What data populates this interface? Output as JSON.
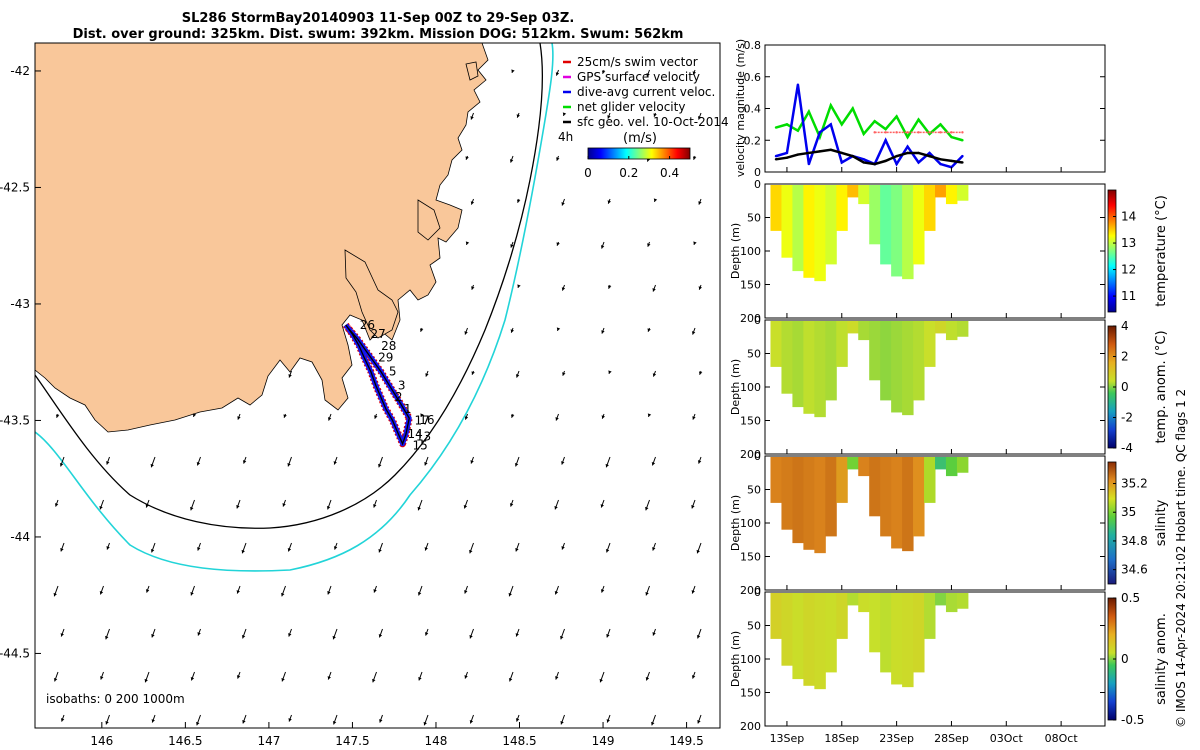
{
  "title": {
    "line1": "SL286 StormBay20140903 11-Sep 00Z to 29-Sep 03Z.",
    "line2": "Dist. over ground: 325km. Dist. swum: 392km. Mission DOG: 512km. Swum: 562km"
  },
  "chart_data": [
    {
      "id": "map",
      "type": "scatter",
      "title": "SL286 StormBay20140903 11-Sep 00Z to 29-Sep 03Z.",
      "x_ticks": [
        "146",
        "146.5",
        "147",
        "147.5",
        "148",
        "148.5",
        "149",
        "149.5"
      ],
      "y_ticks": [
        "-42",
        "-42.5",
        "-43",
        "-43.5",
        "-44",
        "-44.5"
      ],
      "xlim": [
        145.6,
        149.7
      ],
      "ylim": [
        -44.82,
        -41.88
      ],
      "legend": [
        {
          "label": "25cm/s swim vector",
          "color": "#e00000"
        },
        {
          "label": "GPS surface velocity",
          "color": "#e000e0"
        },
        {
          "label": "dive-avg current veloc.",
          "color": "#0000ee"
        },
        {
          "label": "net glider velocity",
          "color": "#00dd00"
        },
        {
          "label": "sfc geo. vel. 10-Oct-2014",
          "color": "#000000"
        }
      ],
      "time_label": "4h",
      "colorbar": {
        "label": "(m/s)",
        "ticks": [
          "0",
          "0.2",
          "0.4"
        ],
        "range": [
          0,
          0.5
        ]
      },
      "isobaths_label": "isobaths: 0   200  1000m",
      "track_day_labels": [
        "26",
        "27",
        "28",
        "29",
        "5",
        "3",
        "2",
        "1",
        "17",
        "14",
        "15",
        "13",
        "16"
      ],
      "track_points": [
        [
          147.46,
          -43.09
        ],
        [
          147.5,
          -43.13
        ],
        [
          147.54,
          -43.18
        ],
        [
          147.57,
          -43.23
        ],
        [
          147.61,
          -43.29
        ],
        [
          147.64,
          -43.35
        ],
        [
          147.67,
          -43.4
        ],
        [
          147.7,
          -43.45
        ],
        [
          147.74,
          -43.5
        ],
        [
          147.77,
          -43.55
        ],
        [
          147.8,
          -43.6
        ],
        [
          147.82,
          -43.56
        ],
        [
          147.84,
          -43.49
        ],
        [
          147.79,
          -43.43
        ],
        [
          147.73,
          -43.36
        ],
        [
          147.67,
          -43.29
        ],
        [
          147.6,
          -43.22
        ],
        [
          147.53,
          -43.15
        ],
        [
          147.47,
          -43.1
        ]
      ],
      "flow_dir_deg": 250
    },
    {
      "id": "velocity",
      "type": "line",
      "ylabel": "velocity magnitude (m/s)",
      "ylim": [
        0,
        0.8
      ],
      "y_ticks": [
        "0",
        "0.2",
        "0.4",
        "0.6",
        "0.8"
      ],
      "x_days": [
        12,
        13,
        14,
        15,
        16,
        17,
        18,
        19,
        20,
        21,
        22,
        23,
        24,
        25,
        26,
        27,
        28,
        29
      ],
      "series": [
        {
          "name": "net glider velocity",
          "color": "#00dd00",
          "values": [
            0.28,
            0.3,
            0.26,
            0.38,
            0.22,
            0.42,
            0.3,
            0.4,
            0.24,
            0.32,
            0.27,
            0.35,
            0.22,
            0.33,
            0.24,
            0.3,
            0.22,
            0.2
          ]
        },
        {
          "name": "25cm/s swim vector",
          "color": "#ff6060",
          "values": [
            null,
            null,
            null,
            null,
            null,
            null,
            null,
            null,
            null,
            0.25,
            0.25,
            0.25,
            0.25,
            0.25,
            0.25,
            0.25,
            0.25,
            0.25
          ]
        },
        {
          "name": "dive-avg current veloc.",
          "color": "#0000ee",
          "values": [
            0.1,
            0.12,
            0.55,
            0.05,
            0.25,
            0.3,
            0.06,
            0.1,
            0.08,
            0.05,
            0.2,
            0.05,
            0.16,
            0.06,
            0.12,
            0.05,
            0.03,
            0.1
          ]
        },
        {
          "name": "sfc geo. vel.",
          "color": "#000000",
          "values": [
            0.08,
            0.09,
            0.11,
            0.12,
            0.13,
            0.14,
            0.12,
            0.1,
            0.06,
            0.05,
            0.07,
            0.1,
            0.12,
            0.12,
            0.1,
            0.08,
            0.07,
            0.06
          ]
        }
      ]
    },
    {
      "id": "temperature",
      "type": "heatmap",
      "ylabel": "Depth (m)",
      "y_ticks": [
        "0",
        "50",
        "100",
        "150",
        "200"
      ],
      "ylim": [
        0,
        200
      ],
      "colorbar": {
        "label": "temperature (°C)",
        "ticks": [
          "14",
          "13",
          "12",
          "11"
        ],
        "range": [
          10.4,
          15
        ]
      },
      "x_days": [
        12,
        13,
        14,
        15,
        16,
        17,
        18,
        19,
        20,
        21,
        22,
        23,
        24,
        25,
        26,
        27,
        28,
        29
      ],
      "max_depth": [
        70,
        110,
        130,
        140,
        145,
        120,
        70,
        20,
        30,
        90,
        120,
        138,
        142,
        120,
        70,
        20,
        30,
        25
      ],
      "values": [
        13.3,
        13.1,
        12.9,
        13.2,
        13.1,
        13.0,
        13.2,
        13.4,
        13.0,
        12.8,
        12.6,
        12.7,
        12.9,
        13.1,
        13.3,
        13.5,
        13.2,
        13.0
      ]
    },
    {
      "id": "temp_anomaly",
      "type": "heatmap",
      "ylabel": "Depth (m)",
      "y_ticks": [
        "0",
        "50",
        "100",
        "150",
        "200"
      ],
      "ylim": [
        0,
        200
      ],
      "colorbar": {
        "label": "temp. anom. (°C)",
        "ticks": [
          "4",
          "2",
          "0",
          "-2",
          "-4"
        ],
        "range": [
          -4,
          4
        ]
      },
      "x_days": [
        12,
        13,
        14,
        15,
        16,
        17,
        18,
        19,
        20,
        21,
        22,
        23,
        24,
        25,
        26,
        27,
        28,
        29
      ],
      "max_depth": [
        70,
        110,
        130,
        140,
        145,
        120,
        70,
        20,
        30,
        90,
        120,
        138,
        142,
        120,
        70,
        20,
        30,
        25
      ],
      "values": [
        0.6,
        0.4,
        0.3,
        0.5,
        0.4,
        0.3,
        0.5,
        0.7,
        0.3,
        0.2,
        0.1,
        0.2,
        0.3,
        0.4,
        0.6,
        0.8,
        0.5,
        0.4
      ]
    },
    {
      "id": "salinity",
      "type": "heatmap",
      "ylabel": "Depth (m)",
      "y_ticks": [
        "0",
        "50",
        "100",
        "150",
        "200"
      ],
      "ylim": [
        0,
        200
      ],
      "colorbar": {
        "label": "salinity",
        "ticks": [
          "35.2",
          "35",
          "34.8",
          "34.6"
        ],
        "range": [
          34.5,
          35.35
        ]
      },
      "x_days": [
        12,
        13,
        14,
        15,
        16,
        17,
        18,
        19,
        20,
        21,
        22,
        23,
        24,
        25,
        26,
        27,
        28,
        29
      ],
      "max_depth": [
        70,
        110,
        130,
        140,
        145,
        120,
        70,
        20,
        30,
        90,
        120,
        138,
        142,
        120,
        70,
        20,
        30,
        25
      ],
      "values": [
        35.22,
        35.23,
        35.24,
        35.23,
        35.22,
        35.24,
        35.18,
        34.95,
        35.22,
        35.24,
        35.23,
        35.22,
        35.24,
        35.2,
        35.02,
        34.85,
        34.92,
        34.98
      ]
    },
    {
      "id": "salinity_anomaly",
      "type": "heatmap",
      "ylabel": "Depth (m)",
      "y_ticks": [
        "0",
        "50",
        "100",
        "150",
        "200"
      ],
      "ylim": [
        0,
        200
      ],
      "colorbar": {
        "label": "salinity anom.",
        "ticks": [
          "0.5",
          "0",
          "-0.5"
        ],
        "range": [
          -0.5,
          0.5
        ]
      },
      "x_days": [
        12,
        13,
        14,
        15,
        16,
        17,
        18,
        19,
        20,
        21,
        22,
        23,
        24,
        25,
        26,
        27,
        28,
        29
      ],
      "max_depth": [
        70,
        110,
        130,
        140,
        145,
        120,
        70,
        20,
        30,
        90,
        120,
        138,
        142,
        120,
        70,
        20,
        30,
        25
      ],
      "values": [
        0.12,
        0.1,
        0.08,
        0.1,
        0.09,
        0.08,
        0.1,
        0.05,
        0.08,
        0.07,
        0.06,
        0.08,
        0.09,
        0.1,
        0.05,
        0.0,
        0.04,
        0.05
      ]
    }
  ],
  "time_axis": {
    "labels": [
      "13Sep",
      "18Sep",
      "23Sep",
      "28Sep",
      "03Oct",
      "08Oct"
    ],
    "label_days": [
      13,
      18,
      23,
      28,
      33,
      38
    ],
    "range_days": [
      11,
      42
    ]
  },
  "credit": "© IMOS 14-Apr-2024 20:21:02 Hobart time. QC flags 1  2"
}
